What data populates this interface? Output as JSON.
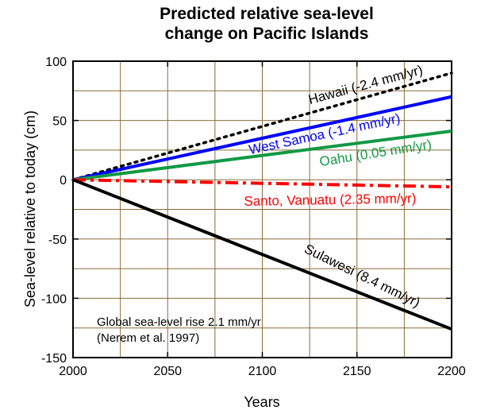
{
  "chart_data": {
    "type": "line",
    "title": [
      "Predicted relative sea-level",
      "change on Pacific Islands"
    ],
    "xlabel": "Years",
    "ylabel": "Sea-level relative to today (cm)",
    "xlim": [
      2000,
      2200
    ],
    "ylim": [
      -150,
      100
    ],
    "xticks": [
      2000,
      2050,
      2100,
      2150,
      2200
    ],
    "yticks": [
      100,
      50,
      0,
      -50,
      -100,
      -150
    ],
    "grid": true,
    "legend": "inline labels",
    "series": [
      {
        "name": "Hawaii (-2.4 mm/yr)",
        "color": "#000000",
        "style": "dotted",
        "x": [
          2000,
          2200
        ],
        "y": [
          0,
          90
        ]
      },
      {
        "name": "West Samoa (-1.4 mm/yr)",
        "color": "#0000ff",
        "style": "solid",
        "x": [
          2000,
          2200
        ],
        "y": [
          0,
          70
        ]
      },
      {
        "name": "Oahu (0.05 mm/yr)",
        "color": "#119944",
        "style": "solid",
        "x": [
          2000,
          2200
        ],
        "y": [
          0,
          41
        ]
      },
      {
        "name": "Santo, Vanuatu (2.35 mm/yr)",
        "color": "#ff0000",
        "style": "dashdot",
        "x": [
          2000,
          2200
        ],
        "y": [
          0,
          -6
        ]
      },
      {
        "name": "Sulawesi (8.4 mm/yr)",
        "color": "#000000",
        "style": "solid",
        "x": [
          2000,
          2200
        ],
        "y": [
          0,
          -126
        ]
      }
    ],
    "annotations": [
      "Global sea-level rise 2.1 mm/yr",
      "(Nerem et al. 1997)"
    ]
  }
}
